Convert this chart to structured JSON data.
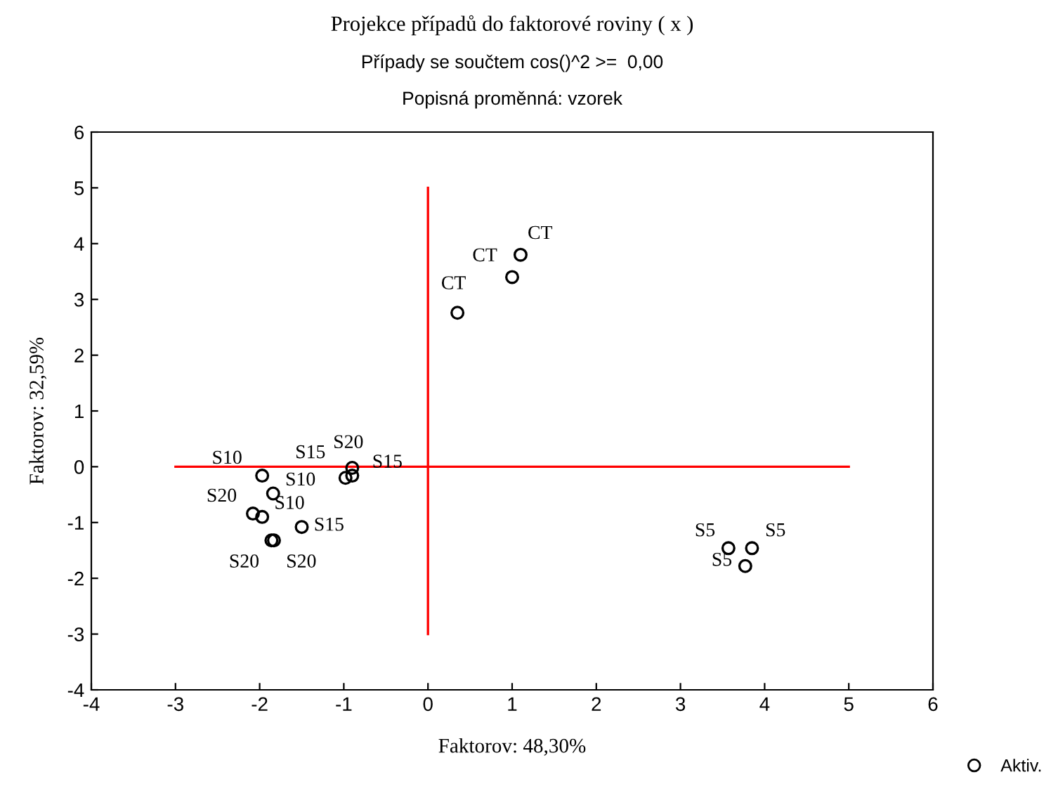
{
  "chart_data": {
    "type": "scatter",
    "title": "Projekce případů do faktorové roviny ( x )",
    "subtitle": "Případy se součtem cos()^2 >=  0,00\nPopisná proměnná: vzorek",
    "xlabel": "Faktorov: 48,30%",
    "ylabel": "Faktorov: 32,59%",
    "xlim": [
      -4,
      6
    ],
    "ylim": [
      -4,
      6
    ],
    "xticks": [
      -4,
      -3,
      -2,
      -1,
      0,
      1,
      2,
      3,
      4,
      5,
      6
    ],
    "yticks": [
      -4,
      -3,
      -2,
      -1,
      0,
      1,
      2,
      3,
      4,
      5,
      6
    ],
    "grid": false,
    "legend": "bottom right",
    "series": [
      {
        "type": "line",
        "color": "#ff0000",
        "marker": "none",
        "x": [
          -3,
          5
        ],
        "values": [
          0,
          0
        ]
      },
      {
        "type": "line",
        "color": "#ff0000",
        "marker": "none",
        "x": [
          0,
          0
        ],
        "values": [
          -3,
          5
        ]
      },
      {
        "name": "Aktiv.",
        "color": "#000000",
        "marker": "circle",
        "x": [
          -1.97,
          -1.84,
          -2.08,
          -1.97,
          -1.86,
          -1.83,
          -1.5,
          -0.98,
          -0.9,
          -0.9,
          0.35,
          1.0,
          1.1,
          3.57,
          3.85,
          3.77
        ],
        "values": [
          -0.16,
          -0.48,
          -0.84,
          -0.9,
          -1.32,
          -1.32,
          -1.08,
          -0.2,
          -0.16,
          -0.02,
          2.76,
          3.4,
          3.8,
          -1.46,
          -1.46,
          -1.78
        ],
        "value_labels": [
          "S10",
          "S10",
          "S20",
          "S10",
          "S20",
          "S20",
          "S15",
          "S15",
          "S15",
          "S20",
          "CT",
          "CT",
          "CT",
          "S5",
          "S5",
          "S5"
        ]
      }
    ]
  }
}
